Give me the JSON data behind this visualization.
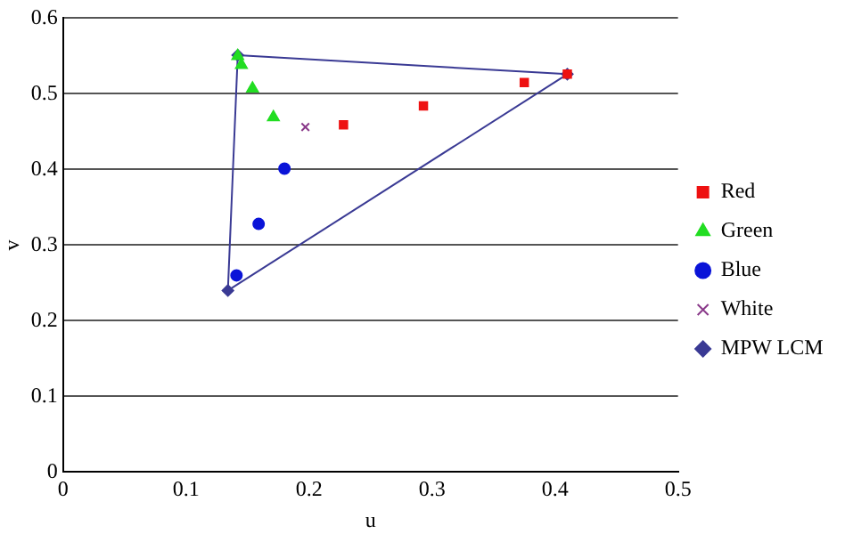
{
  "chart_data": {
    "type": "line",
    "xlabel": "u",
    "ylabel": "v",
    "xlim": [
      0,
      0.5
    ],
    "ylim": [
      0,
      0.6
    ],
    "xticks": [
      0,
      0.1,
      0.2,
      0.3,
      0.4,
      0.5
    ],
    "yticks": [
      0,
      0.1,
      0.2,
      0.3,
      0.4,
      0.5,
      0.6
    ],
    "grid": "y",
    "legend": "right",
    "series": [
      {
        "name": "MPW LCM",
        "color": "#3a3a94",
        "marker": "diamond",
        "x": [
          0.134,
          0.142,
          0.41
        ],
        "values": [
          0.24,
          0.551,
          0.526
        ]
      },
      {
        "color": "#3a3a94",
        "marker": "none",
        "x": [
          0.134,
          0.41
        ],
        "values": [
          0.24,
          0.526
        ]
      },
      {
        "name": "Red",
        "type": "scatter",
        "color": "#ee1111",
        "marker": "square",
        "x": [
          0.228,
          0.293,
          0.375,
          0.41
        ],
        "values": [
          0.459,
          0.484,
          0.515,
          0.526
        ]
      },
      {
        "name": "Green",
        "type": "scatter",
        "color": "#22dd22",
        "marker": "triangle",
        "x": [
          0.142,
          0.145,
          0.154,
          0.171
        ],
        "values": [
          0.55,
          0.538,
          0.507,
          0.469
        ]
      },
      {
        "name": "Blue",
        "type": "scatter",
        "color": "#0a14d8",
        "marker": "circle",
        "x": [
          0.141,
          0.159,
          0.18
        ],
        "values": [
          0.26,
          0.328,
          0.401
        ]
      },
      {
        "name": "White",
        "type": "scatter",
        "color": "#8a3a8a",
        "marker": "cross",
        "x": [
          0.197
        ],
        "values": [
          0.456
        ]
      }
    ]
  }
}
